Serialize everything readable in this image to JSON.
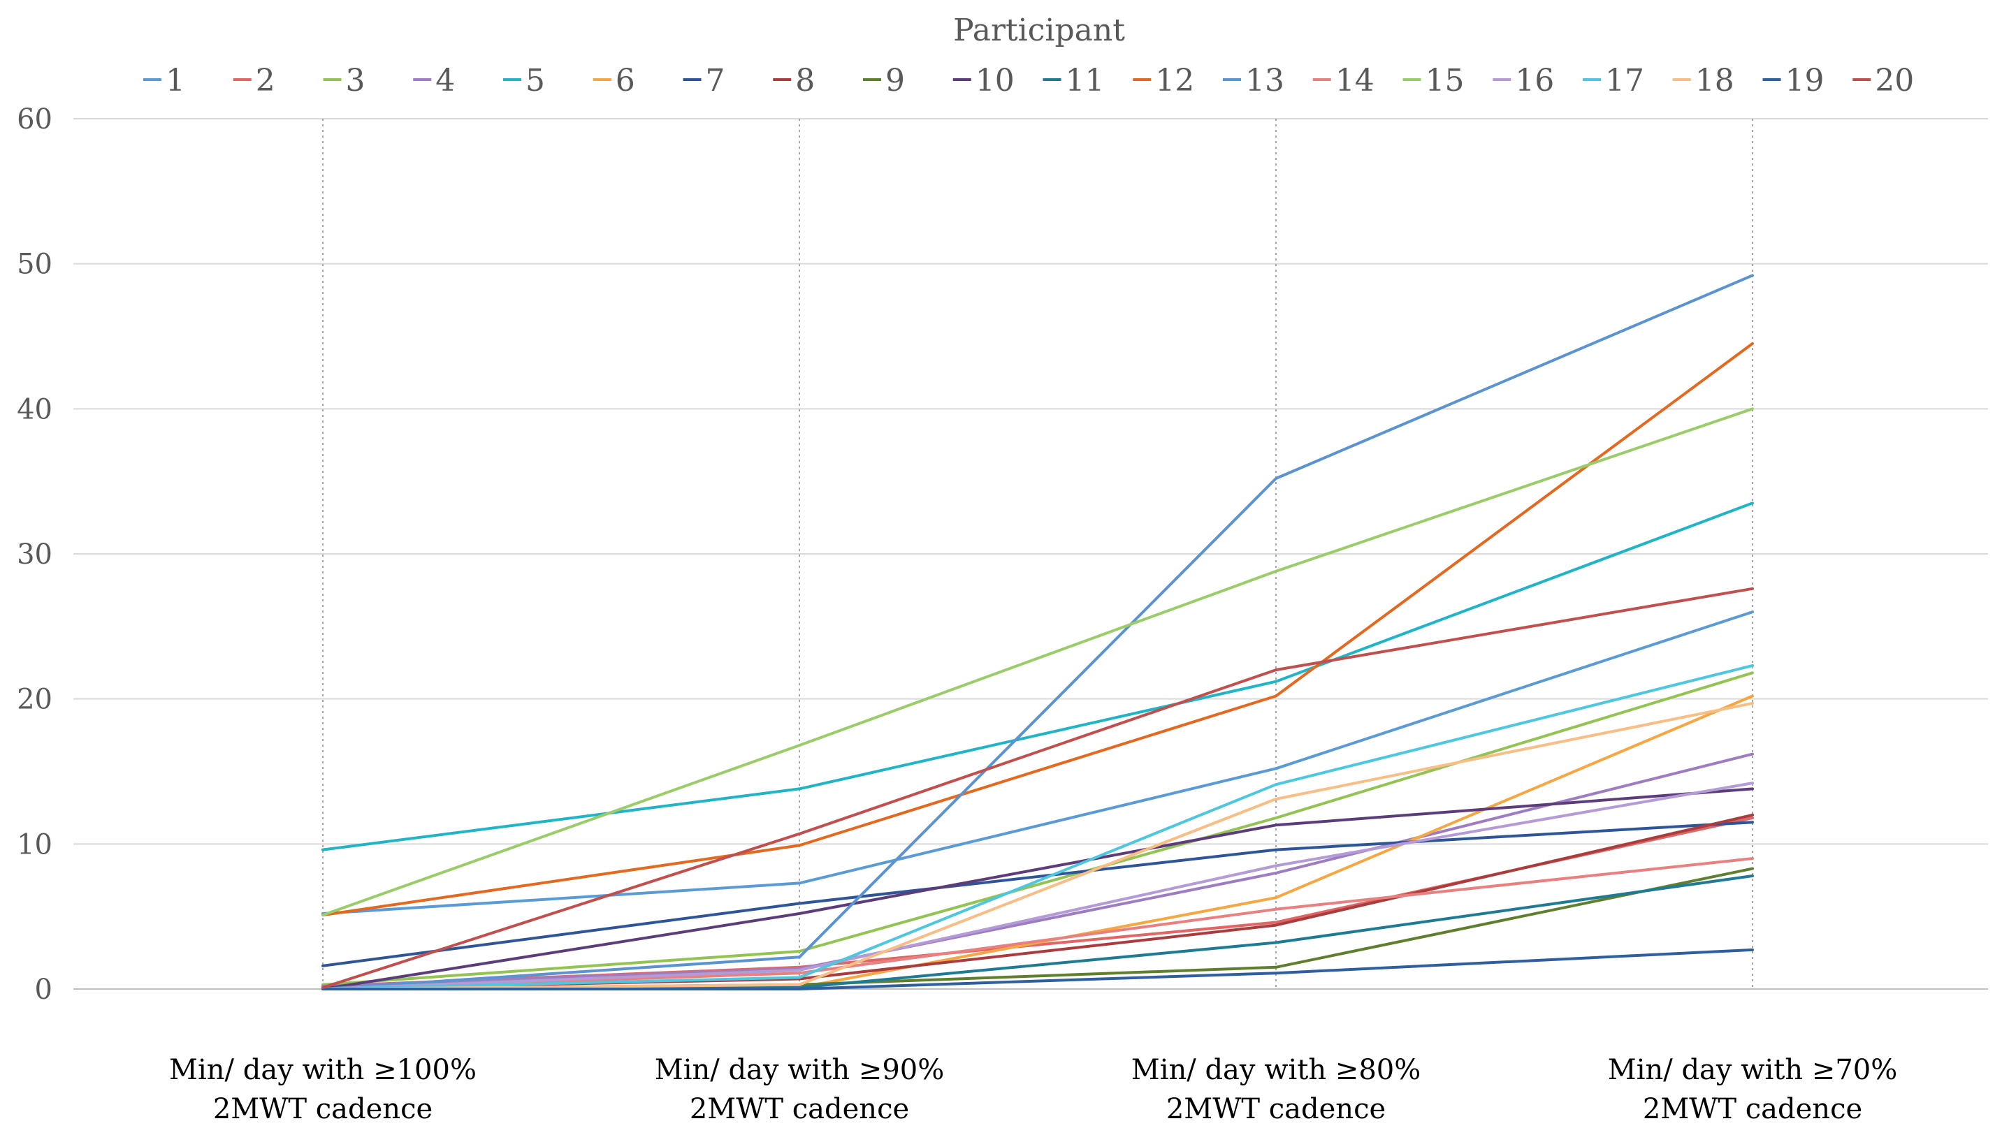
{
  "chart_data": {
    "type": "line",
    "title": "",
    "legend_title": "Participant",
    "legend_position": "top",
    "xlabel": "",
    "ylabel": "",
    "ylim": [
      0,
      60
    ],
    "yticks": [
      0,
      10,
      20,
      30,
      40,
      50,
      60
    ],
    "grid": true,
    "categories": [
      [
        "Min/ day with ≥100%",
        "2MWT cadence"
      ],
      [
        "Min/ day with ≥90%",
        "2MWT cadence"
      ],
      [
        "Min/ day with ≥80%",
        "2MWT cadence"
      ],
      [
        "Min/ day with ≥70%",
        "2MWT cadence"
      ]
    ],
    "series": [
      {
        "name": "1",
        "color": "#5B9BD5",
        "values": [
          5.2,
          7.3,
          15.2,
          26.0
        ]
      },
      {
        "name": "2",
        "color": "#E06666",
        "values": [
          0.2,
          1.5,
          4.6,
          11.8
        ]
      },
      {
        "name": "3",
        "color": "#92C353",
        "values": [
          0.3,
          2.6,
          11.8,
          21.8
        ]
      },
      {
        "name": "4",
        "color": "#9E7CC1",
        "values": [
          0.2,
          1.4,
          8.0,
          16.2
        ]
      },
      {
        "name": "5",
        "color": "#21B3C6",
        "values": [
          9.6,
          13.8,
          21.2,
          33.5
        ]
      },
      {
        "name": "6",
        "color": "#F4A742",
        "values": [
          0.1,
          0.1,
          6.3,
          20.2
        ]
      },
      {
        "name": "7",
        "color": "#2E5597",
        "values": [
          1.6,
          5.9,
          9.6,
          11.5
        ]
      },
      {
        "name": "8",
        "color": "#A93C3C",
        "values": [
          0.0,
          0.7,
          4.4,
          12.0
        ]
      },
      {
        "name": "9",
        "color": "#5F7F2E",
        "values": [
          0.0,
          0.3,
          1.5,
          8.3
        ]
      },
      {
        "name": "10",
        "color": "#5C3D7A",
        "values": [
          0.0,
          5.2,
          11.3,
          13.8
        ]
      },
      {
        "name": "11",
        "color": "#1F7A94",
        "values": [
          0.0,
          0.1,
          3.2,
          7.8
        ]
      },
      {
        "name": "12",
        "color": "#E2691F",
        "values": [
          5.1,
          9.9,
          20.2,
          44.5
        ]
      },
      {
        "name": "13",
        "color": "#5A93CF",
        "values": [
          0.0,
          2.2,
          35.2,
          49.2
        ]
      },
      {
        "name": "14",
        "color": "#E88080",
        "values": [
          0.0,
          1.1,
          5.5,
          9.0
        ]
      },
      {
        "name": "15",
        "color": "#9ACD6A",
        "values": [
          5.1,
          16.8,
          28.8,
          40.0
        ]
      },
      {
        "name": "16",
        "color": "#B49BD6",
        "values": [
          0.0,
          1.3,
          8.5,
          14.2
        ]
      },
      {
        "name": "17",
        "color": "#4FC6DF",
        "values": [
          0.0,
          0.8,
          14.1,
          22.3
        ]
      },
      {
        "name": "18",
        "color": "#F7BE86",
        "values": [
          0.0,
          0.3,
          13.1,
          19.7
        ]
      },
      {
        "name": "19",
        "color": "#2F5F9E",
        "values": [
          0.0,
          0.0,
          1.1,
          2.7
        ]
      },
      {
        "name": "20",
        "color": "#C0504D",
        "values": [
          0.1,
          10.7,
          22.0,
          27.6
        ]
      }
    ]
  }
}
